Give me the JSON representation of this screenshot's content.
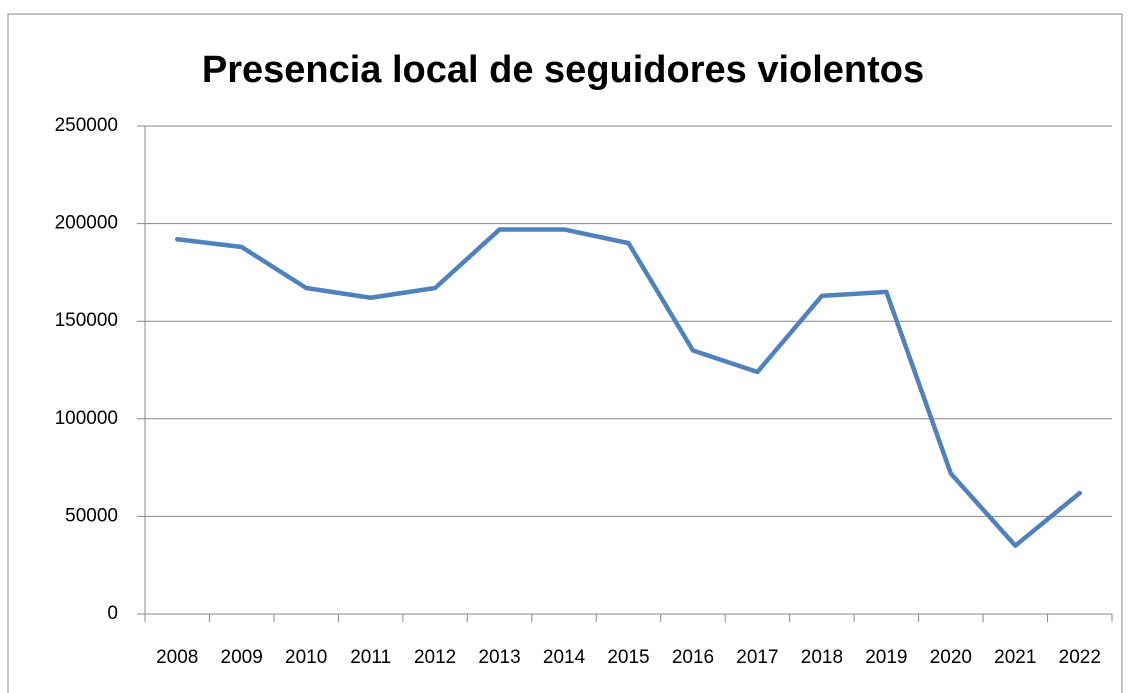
{
  "chart_data": {
    "type": "line",
    "title": "Presencia local de seguidores violentos",
    "categories": [
      "2008",
      "2009",
      "2010",
      "2011",
      "2012",
      "2013",
      "2014",
      "2015",
      "2016",
      "2017",
      "2018",
      "2019",
      "2020",
      "2021",
      "2022"
    ],
    "series": [
      {
        "name": "Presencia local de seguidores violentos",
        "color": "#4f81bd",
        "values": [
          192000,
          188000,
          167000,
          162000,
          167000,
          197000,
          197000,
          190000,
          135000,
          124000,
          163000,
          165000,
          72000,
          35000,
          62000
        ]
      }
    ],
    "ylim": [
      0,
      250000
    ],
    "yticks": [
      0,
      50000,
      100000,
      150000,
      200000,
      250000
    ],
    "grid": true,
    "legend": false
  }
}
